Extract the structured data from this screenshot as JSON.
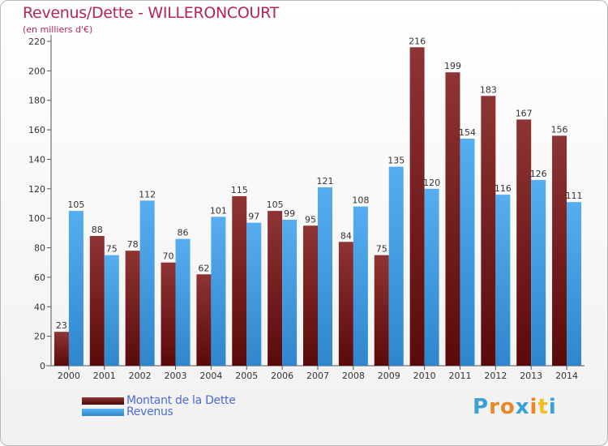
{
  "header": {
    "title": "Revenus/Dette - WILLERONCOURT",
    "subtitle": "(en milliers d'€)"
  },
  "logo": {
    "letters": [
      "P",
      "r",
      "o",
      "x",
      "i",
      "t",
      "i"
    ],
    "colors": [
      "#3aa0d8",
      "#e8862a",
      "#e8862a",
      "#3aa0d8",
      "#e8862a",
      "#f0c020",
      "#3aa0d8"
    ]
  },
  "chart_data": {
    "type": "bar",
    "title": "Revenus/Dette - WILLERONCOURT",
    "subtitle": "(en milliers d'€)",
    "categories": [
      "2000",
      "2001",
      "2002",
      "2003",
      "2004",
      "2005",
      "2006",
      "2007",
      "2008",
      "2009",
      "2010",
      "2011",
      "2012",
      "2013",
      "2014"
    ],
    "series": [
      {
        "name": "Montant de la Dette",
        "color": "#7a1a1a",
        "values": [
          23,
          88,
          78,
          70,
          62,
          115,
          105,
          95,
          84,
          75,
          216,
          199,
          183,
          167,
          156
        ]
      },
      {
        "name": "Revenus",
        "color": "#4aa3e6",
        "values": [
          105,
          75,
          112,
          86,
          101,
          97,
          99,
          121,
          108,
          135,
          120,
          154,
          116,
          126,
          111
        ]
      }
    ],
    "yticks": [
      0,
      20,
      40,
      60,
      80,
      100,
      120,
      140,
      160,
      180,
      200,
      220
    ],
    "ylim": [
      0,
      220
    ],
    "grid": false,
    "legend": "bottom-left"
  }
}
